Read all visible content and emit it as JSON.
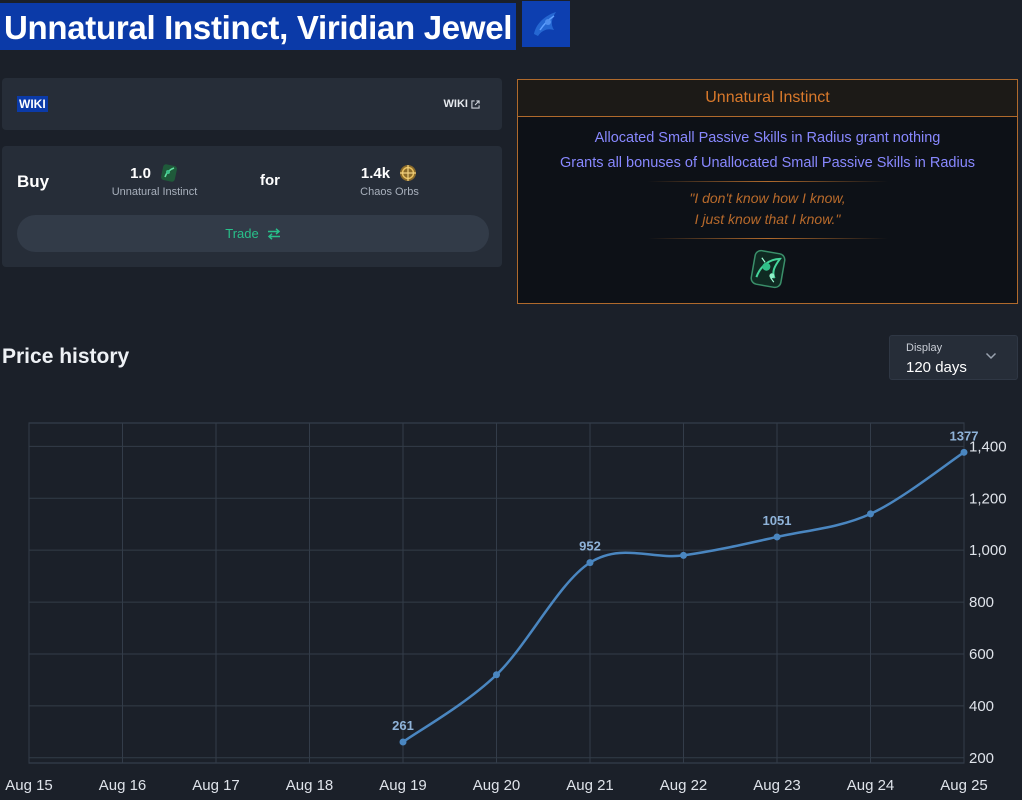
{
  "header": {
    "title": "Unnatural Instinct, Viridian Jewel",
    "icon": "viridian-jewel-icon"
  },
  "wiki_card": {
    "badge": "WIKI",
    "link_label": "WIKI",
    "link_icon": "external-link-icon"
  },
  "buy_card": {
    "buy_label": "Buy",
    "give_qty": "1.0",
    "give_item": "Unnatural Instinct",
    "for_label": "for",
    "get_qty": "1.4k",
    "get_item": "Chaos Orbs",
    "trade_label": "Trade",
    "trade_icon": "swap-arrows-icon"
  },
  "item": {
    "name": "Unnatural Instinct",
    "mods": [
      "Allocated Small Passive Skills in Radius grant nothing",
      "Grants all bonuses of Unallocated Small Passive Skills in Radius"
    ],
    "flavour": [
      "\"I don't know how I know,",
      "I just know that I know.\""
    ],
    "colors": {
      "unique": "#b06a2c",
      "mod": "#8888ff"
    }
  },
  "price_history": {
    "title": "Price history",
    "display_label": "Display",
    "display_value": "120 days"
  },
  "chart_data": {
    "type": "line",
    "x": [
      "Aug 15",
      "Aug 16",
      "Aug 17",
      "Aug 18",
      "Aug 19",
      "Aug 20",
      "Aug 21",
      "Aug 22",
      "Aug 23",
      "Aug 24",
      "Aug 25"
    ],
    "series": [
      {
        "values": [
          null,
          null,
          null,
          null,
          261,
          520,
          952,
          980,
          1051,
          1140,
          1377
        ]
      }
    ],
    "data_labels": [
      {
        "x": "Aug 19",
        "text": "261"
      },
      {
        "x": "Aug 21",
        "text": "952"
      },
      {
        "x": "Aug 23",
        "text": "1051"
      },
      {
        "x": "Aug 25",
        "text": "1377"
      }
    ],
    "y_ticks": [
      200,
      400,
      600,
      800,
      1000,
      1200,
      1400
    ],
    "y_tick_labels": [
      "200",
      "400",
      "600",
      "800",
      "1,000",
      "1,200",
      "1,400"
    ],
    "ylim": [
      180,
      1490
    ],
    "y_axis_side": "right",
    "grid": true,
    "line_color": "#4a86c0"
  }
}
